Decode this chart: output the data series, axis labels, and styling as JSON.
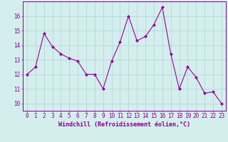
{
  "x": [
    0,
    1,
    2,
    3,
    4,
    5,
    6,
    7,
    8,
    9,
    10,
    11,
    12,
    13,
    14,
    15,
    16,
    17,
    18,
    19,
    20,
    21,
    22,
    23
  ],
  "y": [
    12.0,
    12.5,
    14.8,
    13.9,
    13.4,
    13.1,
    12.9,
    12.0,
    12.0,
    11.0,
    12.9,
    14.2,
    16.0,
    14.3,
    14.6,
    15.4,
    16.6,
    13.4,
    11.0,
    12.5,
    11.8,
    10.7,
    10.8,
    10.0
  ],
  "line_color": "#990099",
  "marker": "D",
  "marker_size": 2.0,
  "bg_color": "#d4eeee",
  "grid_color": "#aed4d4",
  "xlabel": "Windchill (Refroidissement éolien,°C)",
  "xlabel_color": "#880088",
  "tick_color": "#880088",
  "ylim": [
    9.5,
    17.0
  ],
  "xlim": [
    -0.5,
    23.5
  ],
  "yticks": [
    10,
    11,
    12,
    13,
    14,
    15,
    16
  ],
  "xticks": [
    0,
    1,
    2,
    3,
    4,
    5,
    6,
    7,
    8,
    9,
    10,
    11,
    12,
    13,
    14,
    15,
    16,
    17,
    18,
    19,
    20,
    21,
    22,
    23
  ],
  "tick_fontsize": 5.5,
  "xlabel_fontsize": 6.0,
  "linewidth": 0.8
}
